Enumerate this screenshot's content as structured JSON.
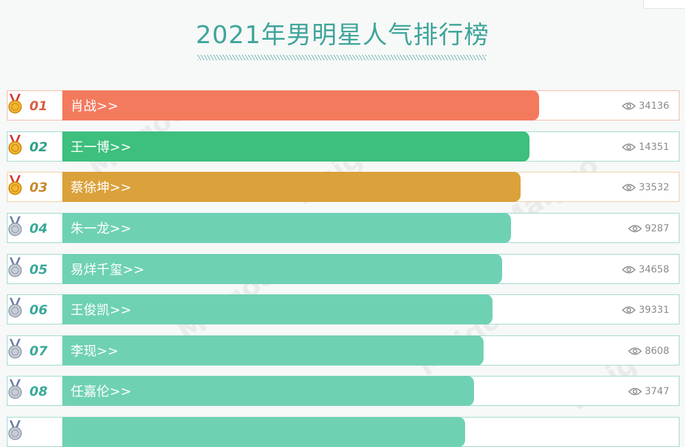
{
  "header": {
    "title": "2021年男明星人气排行榜"
  },
  "colors": {
    "title": "#3fa59a",
    "default_bar": "#6fd1b4",
    "default_border": "#9ed9cf",
    "default_rank": "#3aa89a"
  },
  "rows": [
    {
      "rank": "01",
      "name": "肖战>>",
      "views": "34136",
      "bar_color": "#f47a5e",
      "border_color": "#f5b8a8",
      "rank_color": "#d85f45",
      "medal": "gold",
      "bar_fraction": 0.773
    },
    {
      "rank": "02",
      "name": "王一博>>",
      "views": "14351",
      "bar_color": "#3dbf7e",
      "border_color": "#9ed9cf",
      "rank_color": "#2f9f85",
      "medal": "gold",
      "bar_fraction": 0.758
    },
    {
      "rank": "03",
      "name": "蔡徐坤>>",
      "views": "33532",
      "bar_color": "#dba13a",
      "border_color": "#f1cfa0",
      "rank_color": "#c7892b",
      "medal": "gold",
      "bar_fraction": 0.743
    },
    {
      "rank": "04",
      "name": "朱一龙>>",
      "views": "9287",
      "bar_color": "#6fd1b4",
      "border_color": "#9ed9cf",
      "rank_color": "#3aa89a",
      "medal": "silver",
      "bar_fraction": 0.728
    },
    {
      "rank": "05",
      "name": "易烊千玺>>",
      "views": "34658",
      "bar_color": "#6fd1b4",
      "border_color": "#9ed9cf",
      "rank_color": "#3aa89a",
      "medal": "silver",
      "bar_fraction": 0.713
    },
    {
      "rank": "06",
      "name": "王俊凯>>",
      "views": "39331",
      "bar_color": "#6fd1b4",
      "border_color": "#9ed9cf",
      "rank_color": "#3aa89a",
      "medal": "silver",
      "bar_fraction": 0.698
    },
    {
      "rank": "07",
      "name": "李现>>",
      "views": "8608",
      "bar_color": "#6fd1b4",
      "border_color": "#9ed9cf",
      "rank_color": "#3aa89a",
      "medal": "silver",
      "bar_fraction": 0.683
    },
    {
      "rank": "08",
      "name": "任嘉伦>>",
      "views": "3747",
      "bar_color": "#6fd1b4",
      "border_color": "#9ed9cf",
      "rank_color": "#3aa89a",
      "medal": "silver",
      "bar_fraction": 0.668
    },
    {
      "rank": "",
      "name": "",
      "views": "",
      "bar_color": "#6fd1b4",
      "border_color": "#9ed9cf",
      "rank_color": "#3aa89a",
      "medal": "silver",
      "bar_fraction": 0.653
    }
  ],
  "icons": {
    "medal": "medal-icon",
    "views": "eye-icon"
  }
}
